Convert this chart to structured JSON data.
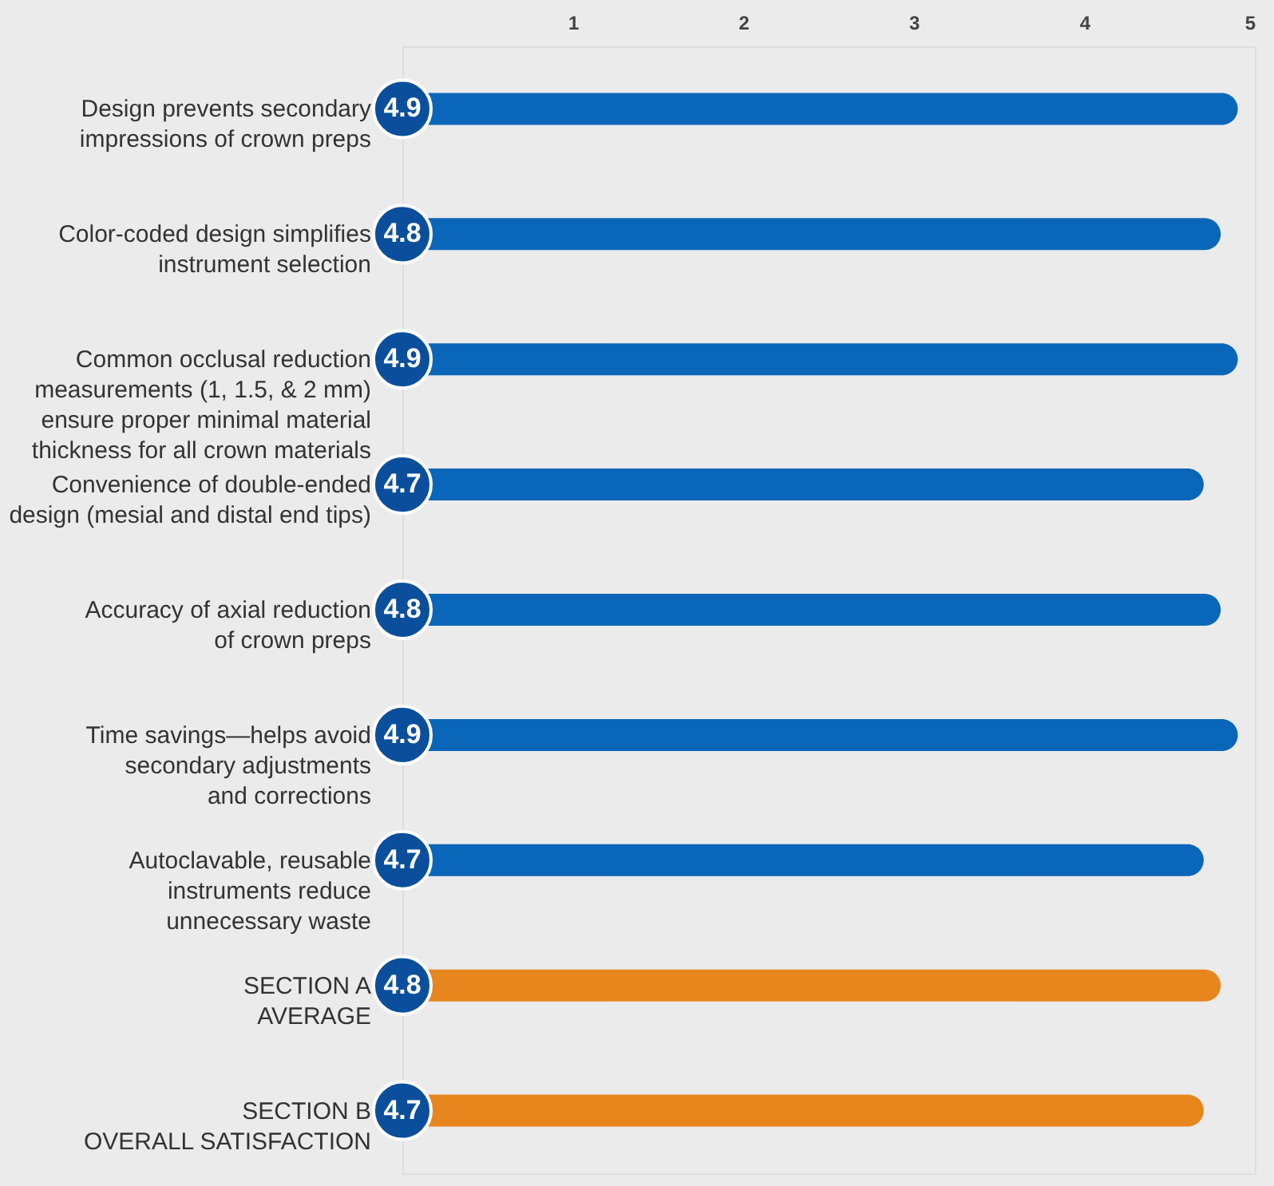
{
  "chart_data": {
    "type": "bar",
    "orientation": "horizontal",
    "categories": [
      "Design prevents secondary\nimpressions of crown preps",
      "Color-coded design simplifies\ninstrument selection",
      "Common occlusal reduction\nmeasurements (1, 1.5, & 2 mm)\nensure proper minimal material\nthickness for all crown materials",
      "Convenience of double-ended\ndesign (mesial and distal end tips)",
      "Accuracy of axial reduction\nof crown preps",
      "Time savings—helps avoid\nsecondary adjustments\nand corrections",
      "Autoclavable, reusable\ninstruments reduce\nunnecessary waste",
      "SECTION A\nAVERAGE",
      "SECTION B\nOVERALL SATISFACTION"
    ],
    "values": [
      4.9,
      4.8,
      4.9,
      4.7,
      4.8,
      4.9,
      4.7,
      4.8,
      4.7
    ],
    "colors": [
      "#0a66b8",
      "#0a66b8",
      "#0a66b8",
      "#0a66b8",
      "#0a66b8",
      "#0a66b8",
      "#0a66b8",
      "#e8861e",
      "#e8861e"
    ],
    "xlim": [
      0,
      5
    ],
    "xticks": [
      1,
      2,
      3,
      4,
      5
    ],
    "data_labels": true
  }
}
